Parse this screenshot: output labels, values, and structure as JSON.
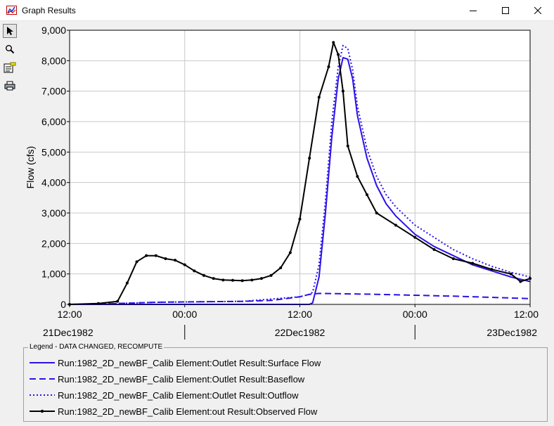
{
  "window": {
    "title": "Graph Results"
  },
  "toolbar": {
    "tools": [
      {
        "name": "pointer-tool",
        "icon": "pointer-icon"
      },
      {
        "name": "zoom-tool",
        "icon": "magnifier-icon"
      },
      {
        "name": "properties-tool",
        "icon": "properties-icon"
      },
      {
        "name": "print-tool",
        "icon": "printer-icon"
      }
    ]
  },
  "chart_data": {
    "type": "line",
    "ylabel": "Flow (cfs)",
    "ylim": [
      0,
      9000
    ],
    "xlim": [
      "1982-12-21 12:00",
      "1982-12-23 12:00"
    ],
    "yticks": [
      "0",
      "1,000",
      "2,000",
      "3,000",
      "4,000",
      "5,000",
      "6,000",
      "7,000",
      "8,000",
      "9,000"
    ],
    "xticks": [
      "12:00",
      "00:00",
      "12:00",
      "00:00",
      "12:00"
    ],
    "date_labels": [
      "21Dec1982",
      "22Dec1982",
      "23Dec1982"
    ],
    "grid": true,
    "colors": {
      "surface": "#2a12e8",
      "observed": "#000000"
    },
    "series": [
      {
        "name": "Run:1982_2D_newBF_Calib Element:Outlet Result:Surface Flow",
        "style": "solid",
        "color": "#2a12e8",
        "x": [
          "1982-12-21 12:00",
          "1982-12-22 13:00",
          "1982-12-22 13:20",
          "1982-12-22 14:00",
          "1982-12-22 14:40",
          "1982-12-22 15:20",
          "1982-12-22 16:00",
          "1982-12-22 16:30",
          "1982-12-22 17:00",
          "1982-12-22 17:30",
          "1982-12-22 18:00",
          "1982-12-22 19:00",
          "1982-12-22 20:00",
          "1982-12-22 21:00",
          "1982-12-22 22:00",
          "1982-12-23 00:00",
          "1982-12-23 02:00",
          "1982-12-23 04:00",
          "1982-12-23 06:00",
          "1982-12-23 08:00",
          "1982-12-23 10:00",
          "1982-12-23 12:00"
        ],
        "y": [
          0,
          0,
          50,
          900,
          3000,
          5500,
          7400,
          8100,
          8050,
          7400,
          6200,
          4800,
          3900,
          3300,
          2900,
          2300,
          1900,
          1600,
          1300,
          1100,
          900,
          750
        ]
      },
      {
        "name": "Run:1982_2D_newBF_Calib Element:Outlet Result:Baseflow",
        "style": "dashed",
        "color": "#2a12e8",
        "x": [
          "1982-12-21 12:00",
          "1982-12-21 15:00",
          "1982-12-21 18:00",
          "1982-12-21 21:00",
          "1982-12-22 00:00",
          "1982-12-22 03:00",
          "1982-12-22 06:00",
          "1982-12-22 09:00",
          "1982-12-22 12:00",
          "1982-12-22 13:00",
          "1982-12-22 14:00",
          "1982-12-22 16:00",
          "1982-12-22 20:00",
          "1982-12-23 00:00",
          "1982-12-23 04:00",
          "1982-12-23 08:00",
          "1982-12-23 12:00"
        ],
        "y": [
          0,
          10,
          40,
          70,
          80,
          90,
          100,
          130,
          250,
          330,
          360,
          350,
          330,
          300,
          270,
          230,
          190
        ]
      },
      {
        "name": "Run:1982_2D_newBF_Calib Element:Outlet Result:Outflow",
        "style": "dotted",
        "color": "#2a12e8",
        "x": [
          "1982-12-21 12:00",
          "1982-12-21 15:00",
          "1982-12-21 18:00",
          "1982-12-21 21:00",
          "1982-12-22 00:00",
          "1982-12-22 06:00",
          "1982-12-22 12:00",
          "1982-12-22 13:00",
          "1982-12-22 13:20",
          "1982-12-22 14:00",
          "1982-12-22 14:40",
          "1982-12-22 15:20",
          "1982-12-22 16:00",
          "1982-12-22 16:30",
          "1982-12-22 17:00",
          "1982-12-22 17:30",
          "1982-12-22 18:00",
          "1982-12-22 19:00",
          "1982-12-22 20:00",
          "1982-12-22 21:00",
          "1982-12-22 22:00",
          "1982-12-23 00:00",
          "1982-12-23 02:00",
          "1982-12-23 04:00",
          "1982-12-23 06:00",
          "1982-12-23 08:00",
          "1982-12-23 10:00",
          "1982-12-23 12:00"
        ],
        "y": [
          0,
          10,
          40,
          70,
          80,
          100,
          250,
          330,
          400,
          1300,
          3400,
          6000,
          7800,
          8500,
          8400,
          7700,
          6500,
          5100,
          4200,
          3600,
          3200,
          2600,
          2200,
          1800,
          1500,
          1250,
          1050,
          900
        ]
      },
      {
        "name": "Run:1982_2D_newBF_Calib Element:out Result:Observed Flow",
        "style": "solid-markers",
        "color": "#000000",
        "x": [
          "1982-12-21 12:00",
          "1982-12-21 15:00",
          "1982-12-21 17:00",
          "1982-12-21 18:00",
          "1982-12-21 19:00",
          "1982-12-21 20:00",
          "1982-12-21 21:00",
          "1982-12-21 22:00",
          "1982-12-21 23:00",
          "1982-12-22 00:00",
          "1982-12-22 01:00",
          "1982-12-22 02:00",
          "1982-12-22 03:00",
          "1982-12-22 04:00",
          "1982-12-22 05:00",
          "1982-12-22 06:00",
          "1982-12-22 07:00",
          "1982-12-22 08:00",
          "1982-12-22 09:00",
          "1982-12-22 10:00",
          "1982-12-22 11:00",
          "1982-12-22 12:00",
          "1982-12-22 13:00",
          "1982-12-22 14:00",
          "1982-12-22 15:00",
          "1982-12-22 15:30",
          "1982-12-22 16:00",
          "1982-12-22 16:30",
          "1982-12-22 17:00",
          "1982-12-22 18:00",
          "1982-12-22 19:00",
          "1982-12-22 20:00",
          "1982-12-22 22:00",
          "1982-12-23 00:00",
          "1982-12-23 02:00",
          "1982-12-23 04:00",
          "1982-12-23 06:00",
          "1982-12-23 08:00",
          "1982-12-23 10:00",
          "1982-12-23 11:00",
          "1982-12-23 12:00"
        ],
        "y": [
          0,
          30,
          100,
          700,
          1400,
          1600,
          1600,
          1500,
          1450,
          1300,
          1100,
          950,
          850,
          800,
          790,
          780,
          800,
          850,
          950,
          1200,
          1700,
          2800,
          4800,
          6800,
          7800,
          8600,
          8200,
          7000,
          5200,
          4200,
          3600,
          3000,
          2600,
          2200,
          1800,
          1500,
          1350,
          1150,
          1000,
          750,
          850
        ]
      }
    ]
  },
  "legend": {
    "title": "Legend - DATA CHANGED, RECOMPUTE",
    "placement": "bottom",
    "entries": [
      "Run:1982_2D_newBF_Calib Element:Outlet Result:Surface Flow",
      "Run:1982_2D_newBF_Calib Element:Outlet Result:Baseflow",
      "Run:1982_2D_newBF_Calib Element:Outlet Result:Outflow",
      "Run:1982_2D_newBF_Calib Element:out Result:Observed Flow"
    ]
  }
}
